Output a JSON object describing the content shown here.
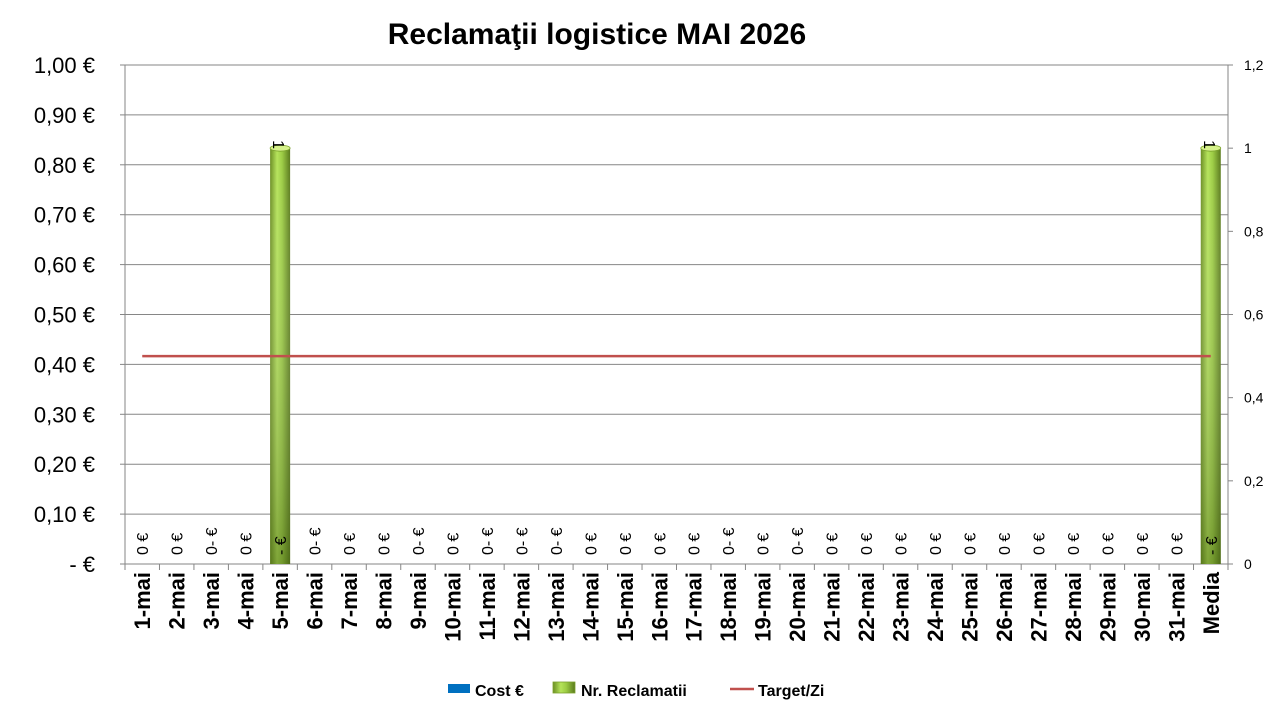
{
  "chart_data": {
    "type": "bar",
    "title": "Reclamaţii logistice MAI 2026",
    "categories": [
      "1-mai",
      "2-mai",
      "3-mai",
      "4-mai",
      "5-mai",
      "6-mai",
      "7-mai",
      "8-mai",
      "9-mai",
      "10-mai",
      "11-mai",
      "12-mai",
      "13-mai",
      "14-mai",
      "15-mai",
      "16-mai",
      "17-mai",
      "18-mai",
      "19-mai",
      "20-mai",
      "21-mai",
      "22-mai",
      "23-mai",
      "24-mai",
      "25-mai",
      "26-mai",
      "27-mai",
      "28-mai",
      "29-mai",
      "30-mai",
      "31-mai",
      "Media"
    ],
    "left_axis": {
      "ylim": [
        0,
        1.0
      ],
      "ticks": [
        {
          "value": 0,
          "label": "-   €"
        },
        {
          "value": 0.1,
          "label": "0,10 €"
        },
        {
          "value": 0.2,
          "label": "0,20 €"
        },
        {
          "value": 0.3,
          "label": "0,30 €"
        },
        {
          "value": 0.4,
          "label": "0,40 €"
        },
        {
          "value": 0.5,
          "label": "0,50 €"
        },
        {
          "value": 0.6,
          "label": "0,60 €"
        },
        {
          "value": 0.7,
          "label": "0,70 €"
        },
        {
          "value": 0.8,
          "label": "0,80 €"
        },
        {
          "value": 0.9,
          "label": "0,90 €"
        },
        {
          "value": 1.0,
          "label": "1,00 €"
        }
      ]
    },
    "right_axis": {
      "ylim": [
        0,
        1.2
      ],
      "ticks": [
        {
          "value": 0,
          "label": "0"
        },
        {
          "value": 0.2,
          "label": "0,2"
        },
        {
          "value": 0.4,
          "label": "0,4"
        },
        {
          "value": 0.6,
          "label": "0,6"
        },
        {
          "value": 0.8,
          "label": "0,8"
        },
        {
          "value": 1.0,
          "label": "1"
        },
        {
          "value": 1.2,
          "label": "1,2"
        }
      ]
    },
    "grid": true,
    "legend_position": "bottom",
    "series": [
      {
        "name": "Cost €",
        "type": "bar",
        "axis": "left",
        "color": "#0070c0",
        "values": [
          0,
          0,
          0,
          0,
          0,
          0,
          0,
          0,
          0,
          0,
          0,
          0,
          0,
          0,
          0,
          0,
          0,
          0,
          0,
          0,
          0,
          0,
          0,
          0,
          0,
          0,
          0,
          0,
          0,
          0,
          0,
          0
        ],
        "labels": [
          "0 €",
          "0 €",
          "0- €",
          "0 €",
          "- €",
          "0- €",
          "0 €",
          "0 €",
          "0- €",
          "0 €",
          "0- €",
          "0- €",
          "0- €",
          "0 €",
          "0 €",
          "0 €",
          "0 €",
          "0- €",
          "0 €",
          "0- €",
          "0 €",
          "0 €",
          "0 €",
          "0 €",
          "0 €",
          "0 €",
          "0 €",
          "0 €",
          "0 €",
          "0 €",
          "0 €",
          "- €"
        ]
      },
      {
        "name": "Nr. Reclamatii",
        "type": "bar",
        "axis": "right",
        "color": "#8cc63f",
        "values": [
          null,
          null,
          null,
          null,
          1,
          null,
          null,
          null,
          null,
          null,
          null,
          null,
          null,
          null,
          null,
          null,
          null,
          null,
          null,
          null,
          null,
          null,
          null,
          null,
          null,
          null,
          null,
          null,
          null,
          null,
          null,
          1
        ],
        "labels": [
          "",
          "",
          "",
          "",
          "1",
          "",
          "",
          "",
          "",
          "",
          "",
          "",
          "",
          "",
          "",
          "",
          "",
          "",
          "",
          "",
          "",
          "",
          "",
          "",
          "",
          "",
          "",
          "",
          "",
          "",
          "",
          "1"
        ]
      },
      {
        "name": "Target/Zi",
        "type": "line",
        "axis": "right",
        "color": "#c0504d",
        "value": 0.5
      }
    ]
  }
}
